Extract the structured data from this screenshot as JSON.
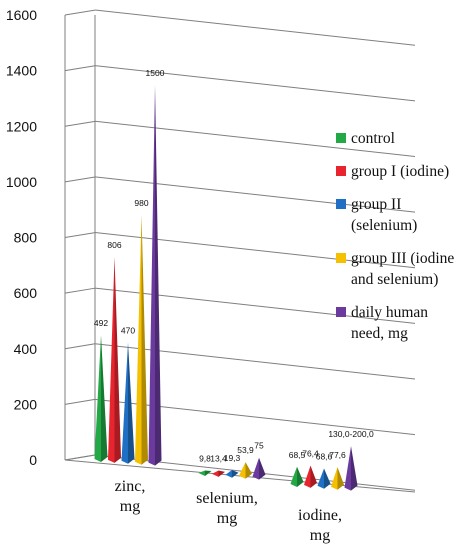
{
  "chart_data": {
    "type": "bar",
    "categories": [
      "zinc,\nmg",
      "selenium,\nmg",
      "iodine,\nmg"
    ],
    "series": [
      {
        "name": "control",
        "color": "#22a845",
        "values": [
          492,
          9.8,
          68.5
        ],
        "labels": [
          "492",
          "9,8",
          "68,5"
        ]
      },
      {
        "name": "group I (iodine)",
        "color": "#e8252e",
        "values": [
          806,
          13.4,
          76.4
        ],
        "labels": [
          "806",
          "13,4",
          "76,4"
        ]
      },
      {
        "name": "group II (selenium)",
        "color": "#1f6fc4",
        "values": [
          470,
          19.3,
          68.6
        ],
        "labels": [
          "470",
          "19,3",
          "68,6"
        ]
      },
      {
        "name": "group III (iodine and selenium)",
        "color": "#f5c000",
        "values": [
          980,
          53.9,
          77.6
        ],
        "labels": [
          "980",
          "53,9",
          "77,6"
        ]
      },
      {
        "name": "daily human need, mg",
        "color": "#6a3a9e",
        "values": [
          1500,
          75,
          165
        ],
        "labels": [
          "1500",
          "75",
          "130,0-200,0"
        ]
      }
    ],
    "ylim": [
      0,
      1600
    ],
    "yticks": [
      "0",
      "200",
      "400",
      "600",
      "800",
      "1000",
      "1200",
      "1400",
      "1600"
    ],
    "grid": true,
    "legend": "right"
  }
}
